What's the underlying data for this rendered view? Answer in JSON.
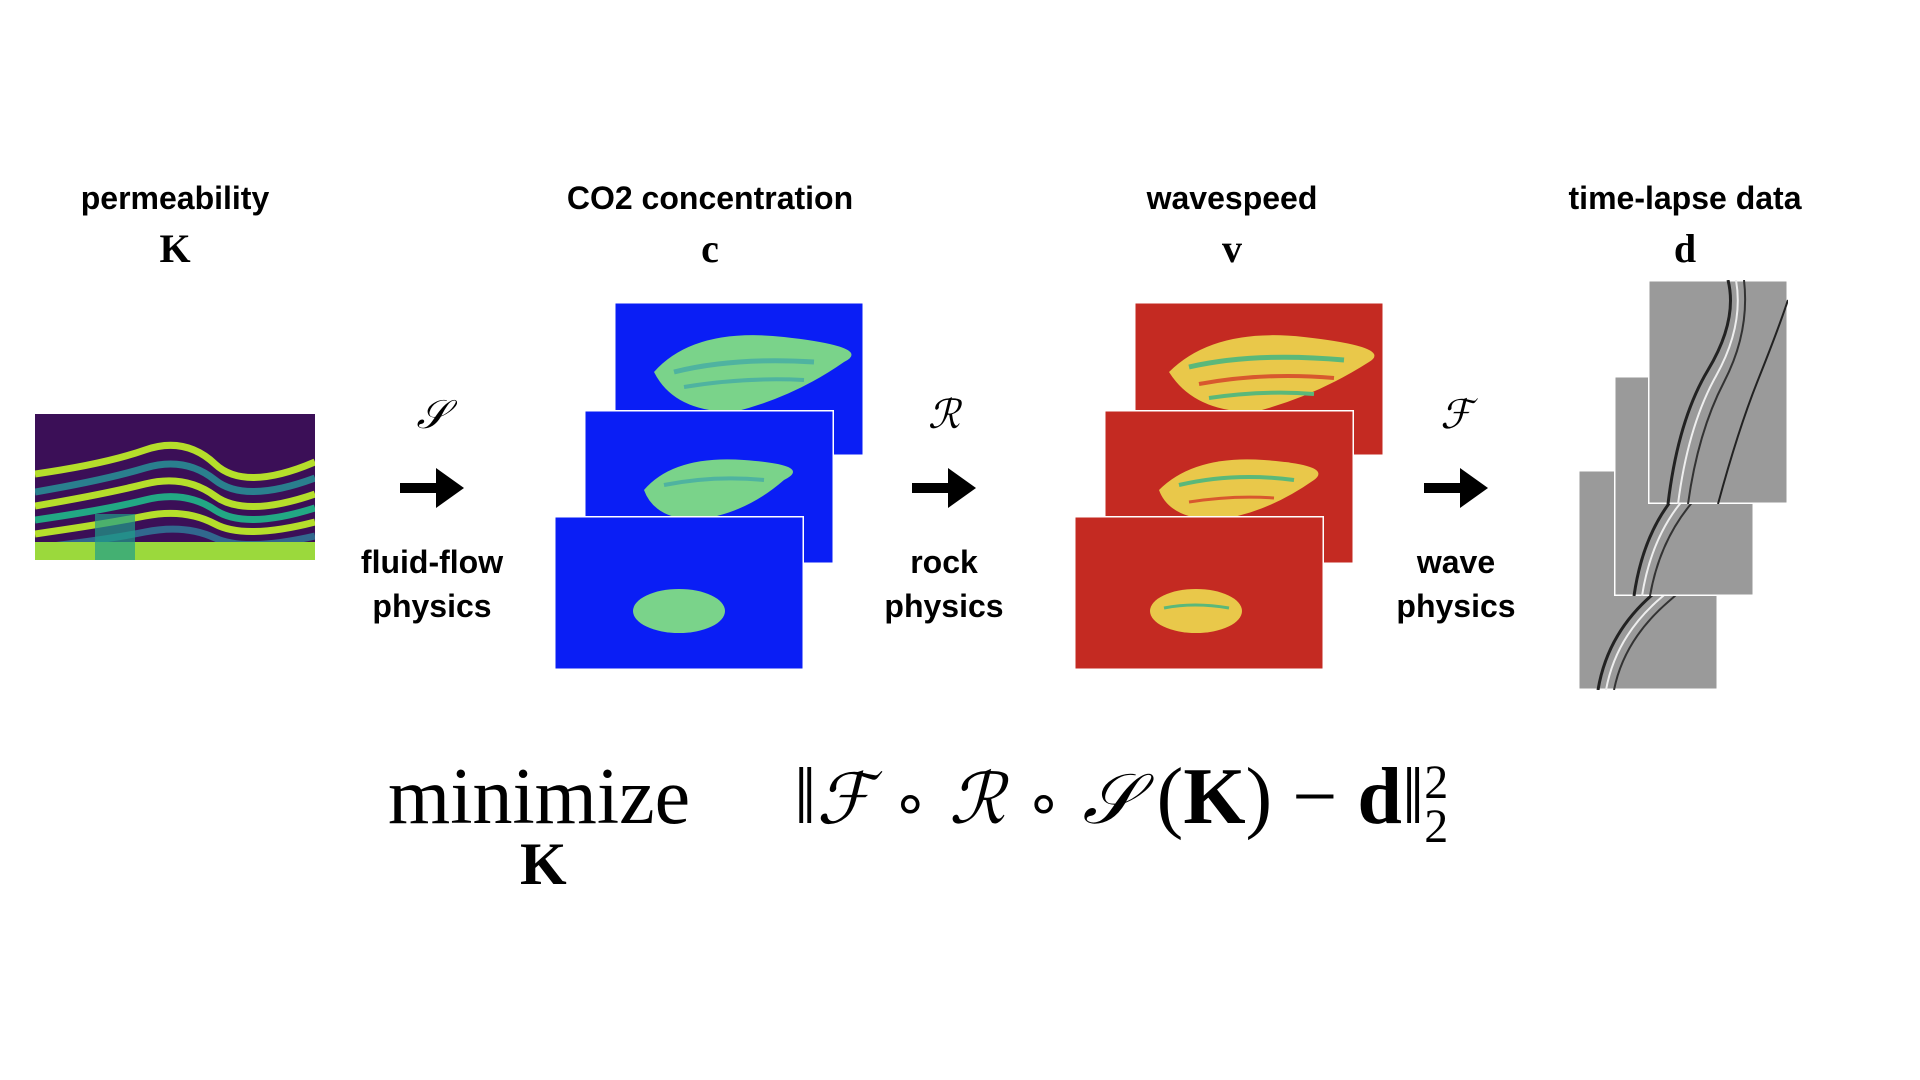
{
  "columns": [
    {
      "label": "permeability",
      "symbol": "K"
    },
    {
      "label": "CO2 concentration",
      "symbol": "c"
    },
    {
      "label": "wavespeed",
      "symbol": "v"
    },
    {
      "label": "time-lapse data",
      "symbol": "d"
    }
  ],
  "operators": [
    {
      "symbol": "𝒮",
      "line1": "fluid-flow",
      "line2": "physics"
    },
    {
      "symbol": "ℛ",
      "line1": "rock",
      "line2": "physics"
    },
    {
      "symbol": "ℱ",
      "line1": "wave",
      "line2": "physics"
    }
  ],
  "formula": {
    "minimize": "minimize",
    "subscript_var": "K",
    "norm_open": "‖",
    "op_f": "ℱ",
    "compose1": "∘",
    "op_r": "ℛ",
    "compose2": "∘",
    "op_s": "𝒮",
    "paren_open": "(",
    "arg": "K",
    "paren_close": ")",
    "minus": "−",
    "data": "d",
    "norm_close": "‖",
    "sup": "2",
    "sub": "2"
  },
  "colors": {
    "permeability_bg": "#3b0f57",
    "permeability_band": "#b5de2b",
    "co2_bg": "#0a1ef5",
    "co2_plume": "#7ad38a",
    "wavespeed_bg": "#c42a22",
    "wavespeed_plume": "#e9c84a",
    "seismic_bg": "#9a9a9a"
  }
}
